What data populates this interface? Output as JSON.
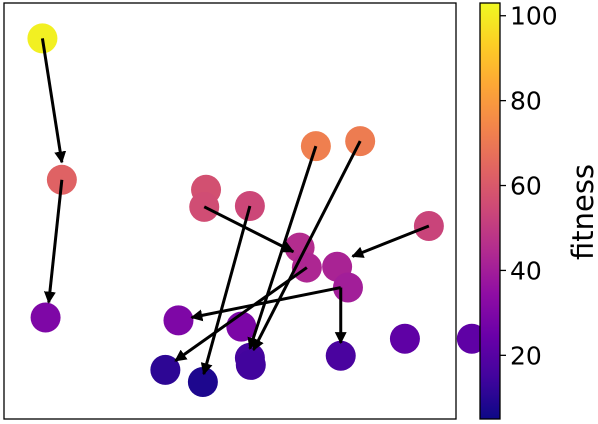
{
  "chart_data": {
    "type": "scatter",
    "title": "",
    "xlabel": "",
    "ylabel": "",
    "axes_ticks_visible": false,
    "grid": false,
    "xlim": [
      0,
      100
    ],
    "ylim": [
      0,
      100
    ],
    "colorbar": {
      "label": "fitness",
      "colormap": "plasma",
      "range": [
        5,
        103
      ],
      "ticks": [
        20,
        40,
        60,
        80,
        100
      ],
      "tick_labels": [
        "20",
        "40",
        "60",
        "80",
        "100"
      ],
      "placement": "right"
    },
    "points": [
      {
        "x": 8.5,
        "y": 91.5,
        "fitness": 101
      },
      {
        "x": 12.8,
        "y": 57.5,
        "fitness": 63
      },
      {
        "x": 9.2,
        "y": 24.4,
        "fitness": 30
      },
      {
        "x": 69.0,
        "y": 65.6,
        "fitness": 72
      },
      {
        "x": 78.8,
        "y": 66.8,
        "fitness": 71
      },
      {
        "x": 44.7,
        "y": 55.1,
        "fitness": 57
      },
      {
        "x": 44.3,
        "y": 51.0,
        "fitness": 56
      },
      {
        "x": 54.4,
        "y": 51.2,
        "fitness": 54
      },
      {
        "x": 94.0,
        "y": 46.4,
        "fitness": 53
      },
      {
        "x": 65.4,
        "y": 41.2,
        "fitness": 45
      },
      {
        "x": 67.0,
        "y": 36.4,
        "fitness": 43
      },
      {
        "x": 73.7,
        "y": 36.6,
        "fitness": 42
      },
      {
        "x": 76.1,
        "y": 31.6,
        "fitness": 40
      },
      {
        "x": 38.6,
        "y": 23.7,
        "fitness": 30
      },
      {
        "x": 52.5,
        "y": 22.2,
        "fitness": 29
      },
      {
        "x": 88.7,
        "y": 19.3,
        "fitness": 22
      },
      {
        "x": 103.5,
        "y": 19.3,
        "fitness": 22
      },
      {
        "x": 74.5,
        "y": 15.2,
        "fitness": 17
      },
      {
        "x": 54.4,
        "y": 14.7,
        "fitness": 16
      },
      {
        "x": 54.6,
        "y": 13.0,
        "fitness": 15
      },
      {
        "x": 35.7,
        "y": 11.8,
        "fitness": 11
      },
      {
        "x": 44.0,
        "y": 8.9,
        "fitness": 8
      }
    ],
    "arrows": [
      {
        "from": [
          8.5,
          91.5
        ],
        "to": [
          12.8,
          61.7
        ]
      },
      {
        "from": [
          12.8,
          57.5
        ],
        "to": [
          9.9,
          28.0
        ]
      },
      {
        "from": [
          69.0,
          65.6
        ],
        "to": [
          54.4,
          16.9
        ]
      },
      {
        "from": [
          78.8,
          66.8
        ],
        "to": [
          55.2,
          16.6
        ]
      },
      {
        "from": [
          44.3,
          51.0
        ],
        "to": [
          64.0,
          40.2
        ]
      },
      {
        "from": [
          54.4,
          51.2
        ],
        "to": [
          44.2,
          10.8
        ]
      },
      {
        "from": [
          94.0,
          46.4
        ],
        "to": [
          77.1,
          39.1
        ]
      },
      {
        "from": [
          74.5,
          31.6
        ],
        "to": [
          74.5,
          18.3
        ]
      },
      {
        "from": [
          74.5,
          31.6
        ],
        "to": [
          41.5,
          24.4
        ]
      },
      {
        "from": [
          67.0,
          36.4
        ],
        "to": [
          37.9,
          14.0
        ]
      }
    ]
  }
}
